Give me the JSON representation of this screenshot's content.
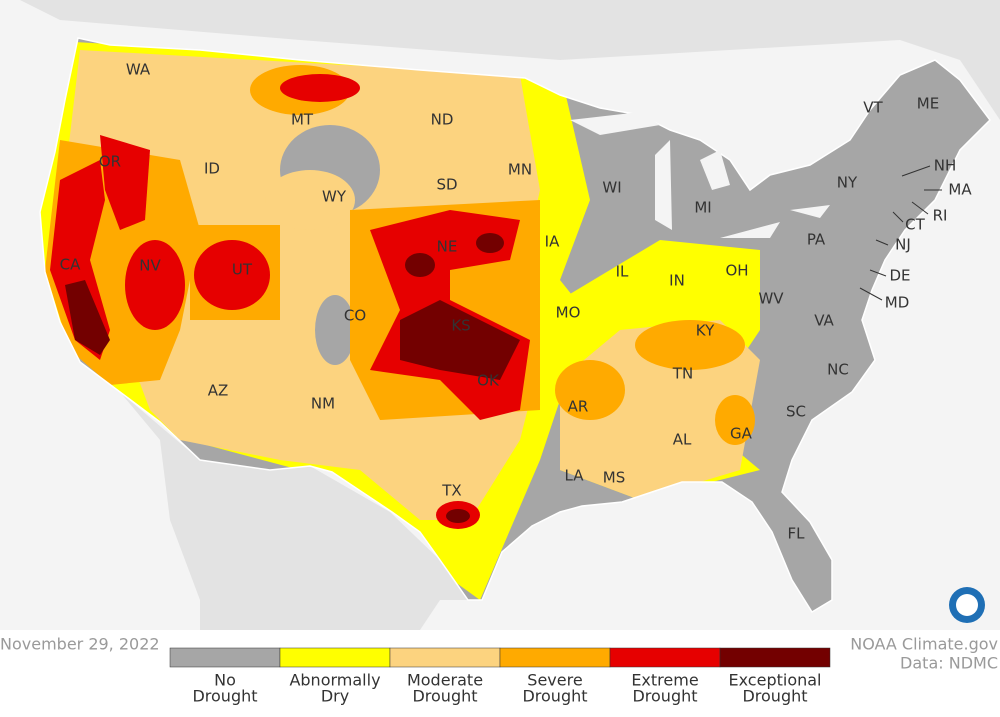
{
  "map": {
    "date": "November 29, 2022",
    "credit": {
      "line1": "NOAA Climate.gov",
      "line2": "Data: NDMC"
    },
    "legend": [
      {
        "lines": [
          "No",
          "Drought"
        ],
        "color": "#a6a6a6"
      },
      {
        "lines": [
          "Abnormally",
          "Dry"
        ],
        "color": "#ffff00"
      },
      {
        "lines": [
          "Moderate",
          "Drought"
        ],
        "color": "#fcd37f"
      },
      {
        "lines": [
          "Severe",
          "Drought"
        ],
        "color": "#ffaa00"
      },
      {
        "lines": [
          "Extreme",
          "Drought"
        ],
        "color": "#e60000"
      },
      {
        "lines": [
          "Exceptional",
          "Drought"
        ],
        "color": "#730000"
      }
    ],
    "states": [
      "WA",
      "MT",
      "ND",
      "MN",
      "WI",
      "MI",
      "VT",
      "ME",
      "NH",
      "MA",
      "RI",
      "CT",
      "NY",
      "PA",
      "NJ",
      "DE",
      "MD",
      "OR",
      "ID",
      "WY",
      "SD",
      "IA",
      "IL",
      "IN",
      "OH",
      "WV",
      "VA",
      "KY",
      "NC",
      "TN",
      "SC",
      "GA",
      "AL",
      "MS",
      "LA",
      "AR",
      "MO",
      "KS",
      "NE",
      "CO",
      "UT",
      "NV",
      "CA",
      "AZ",
      "NM",
      "OK",
      "TX",
      "FL"
    ]
  }
}
